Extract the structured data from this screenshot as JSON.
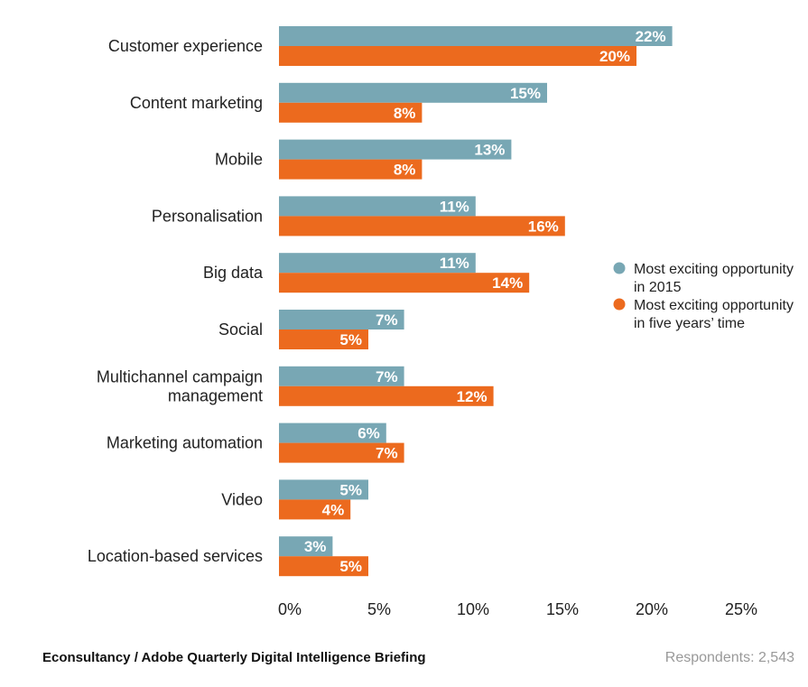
{
  "chart_data": {
    "type": "bar",
    "orientation": "horizontal",
    "categories": [
      [
        "Customer experience"
      ],
      [
        "Content marketing"
      ],
      [
        "Mobile"
      ],
      [
        "Personalisation"
      ],
      [
        "Big data"
      ],
      [
        "Social"
      ],
      [
        "Multichannel campaign",
        "management"
      ],
      [
        "Marketing automation"
      ],
      [
        "Video"
      ],
      [
        "Location-based services"
      ]
    ],
    "series": [
      {
        "name": "Most exciting opportunity in 2015",
        "legend_lines": [
          "Most exciting opportunity",
          "in 2015"
        ],
        "color": "#78a7b4",
        "values": [
          22,
          15,
          13,
          11,
          11,
          7,
          7,
          6,
          5,
          3
        ]
      },
      {
        "name": "Most exciting opportunity in five years' time",
        "legend_lines": [
          "Most exciting opportunity",
          "in five years’ time"
        ],
        "color": "#ec6a1e",
        "values": [
          20,
          8,
          8,
          16,
          14,
          5,
          12,
          7,
          4,
          5
        ]
      }
    ],
    "value_suffix": "%",
    "xlim": [
      0,
      25
    ],
    "xticks": [
      0,
      5,
      10,
      15,
      20,
      25
    ],
    "xtick_labels": [
      "0%",
      "5%",
      "10%",
      "15%",
      "20%",
      "25%"
    ],
    "grid": false,
    "legend_position": "right"
  },
  "footer": {
    "source": "Econsultancy / Adobe Quarterly Digital Intelligence Briefing",
    "respondents": "Respondents: 2,543"
  }
}
